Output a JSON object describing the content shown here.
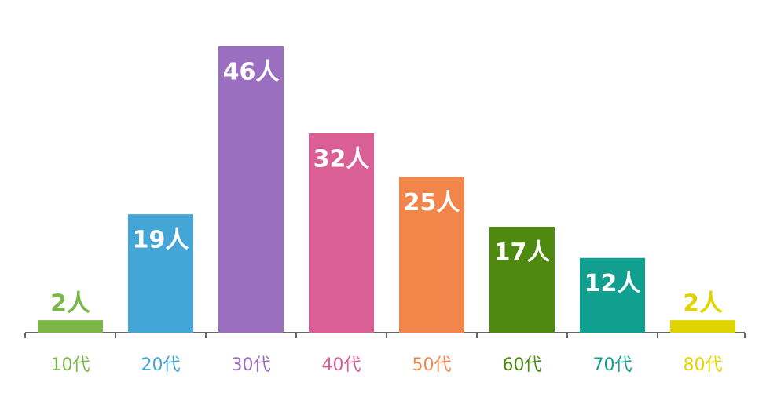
{
  "chart_data": {
    "type": "bar",
    "categories": [
      "10代",
      "20代",
      "30代",
      "40代",
      "50代",
      "60代",
      "70代",
      "80代"
    ],
    "values": [
      2,
      19,
      46,
      32,
      25,
      17,
      12,
      2
    ],
    "value_labels": [
      "2人",
      "19人",
      "46人",
      "32人",
      "25人",
      "17人",
      "12人",
      "2人"
    ],
    "colors": [
      "#7ab648",
      "#44a6d6",
      "#9b6fc0",
      "#d95f94",
      "#f2854a",
      "#4f8a10",
      "#11a08f",
      "#e0d400"
    ],
    "ylim": [
      0,
      50
    ]
  }
}
